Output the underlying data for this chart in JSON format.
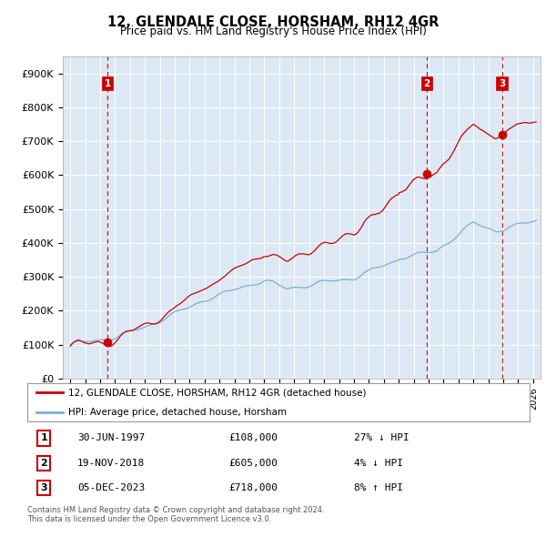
{
  "title": "12, GLENDALE CLOSE, HORSHAM, RH12 4GR",
  "subtitle": "Price paid vs. HM Land Registry's House Price Index (HPI)",
  "legend_house": "12, GLENDALE CLOSE, HORSHAM, RH12 4GR (detached house)",
  "legend_hpi": "HPI: Average price, detached house, Horsham",
  "sale_points": [
    {
      "date_str": "30-JUN-1997",
      "date_x": 1997.5,
      "price": 108000,
      "label": "1",
      "hpi_note": "27% ↓ HPI"
    },
    {
      "date_str": "19-NOV-2018",
      "date_x": 2018.88,
      "price": 605000,
      "label": "2",
      "hpi_note": "4% ↓ HPI"
    },
    {
      "date_str": "05-DEC-2023",
      "date_x": 2023.92,
      "price": 718000,
      "label": "3",
      "hpi_note": "8% ↑ HPI"
    }
  ],
  "footer_line1": "Contains HM Land Registry data © Crown copyright and database right 2024.",
  "footer_line2": "This data is licensed under the Open Government Licence v3.0.",
  "ylim": [
    0,
    950000
  ],
  "yticks": [
    0,
    100000,
    200000,
    300000,
    400000,
    500000,
    600000,
    700000,
    800000,
    900000
  ],
  "ytick_labels": [
    "£0",
    "£100K",
    "£200K",
    "£300K",
    "£400K",
    "£500K",
    "£600K",
    "£700K",
    "£800K",
    "£900K"
  ],
  "xlim": [
    1994.5,
    2026.5
  ],
  "house_color": "#cc0000",
  "hpi_color": "#7ab0d4",
  "dashed_color": "#cc0000",
  "bg_color": "#dde8f5",
  "grid_color": "#ffffff",
  "label_box_color": "#cc0000",
  "transactions": [
    [
      "1",
      "30-JUN-1997",
      "£108,000",
      "27% ↓ HPI"
    ],
    [
      "2",
      "19-NOV-2018",
      "£605,000",
      "4% ↓ HPI"
    ],
    [
      "3",
      "05-DEC-2023",
      "£718,000",
      "8% ↑ HPI"
    ]
  ]
}
